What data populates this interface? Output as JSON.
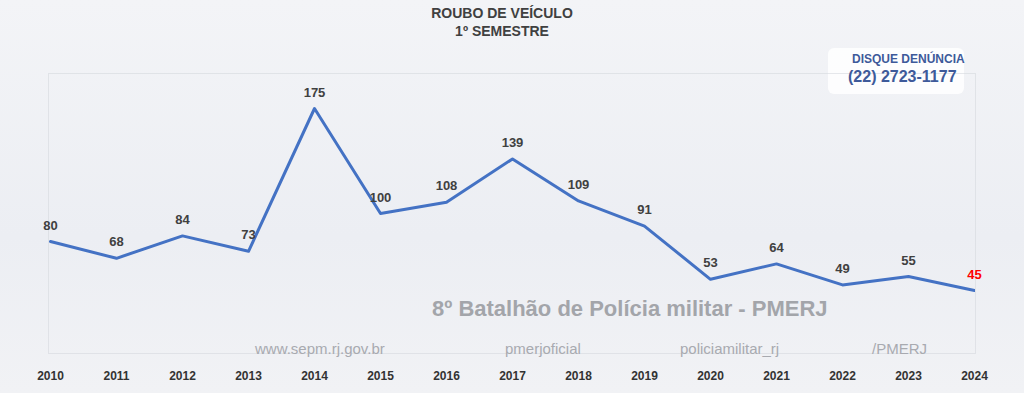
{
  "chart_data": {
    "type": "line",
    "title": "ROUBO DE VEÍCULO",
    "subtitle": "1º SEMESTRE",
    "categories": [
      "2010",
      "2011",
      "2012",
      "2013",
      "2014",
      "2015",
      "2016",
      "2017",
      "2018",
      "2019",
      "2020",
      "2021",
      "2022",
      "2023",
      "2024"
    ],
    "values": [
      80,
      68,
      84,
      73,
      175,
      100,
      108,
      139,
      109,
      91,
      53,
      64,
      49,
      55,
      45
    ],
    "color": "#4472c4",
    "colors": [
      "#404040",
      "#404040",
      "#404040",
      "#404040",
      "#404040",
      "#404040",
      "#404040",
      "#404040",
      "#404040",
      "#404040",
      "#404040",
      "#404040",
      "#404040",
      "#404040",
      "#ff0000"
    ],
    "ylim": [
      0,
      200
    ],
    "yticks": [],
    "tick_labels": "x",
    "grid": false,
    "data_labels": true,
    "annotations": [
      "8º Batalhão de Polícia militar - PMERJ",
      "www.sepm.rj.gov.br",
      "pmerjoficial",
      "policiamilitar_rj",
      "/PMERJ",
      "DISQUE DENÚNCIA",
      "(22) 2723-1177"
    ]
  }
}
